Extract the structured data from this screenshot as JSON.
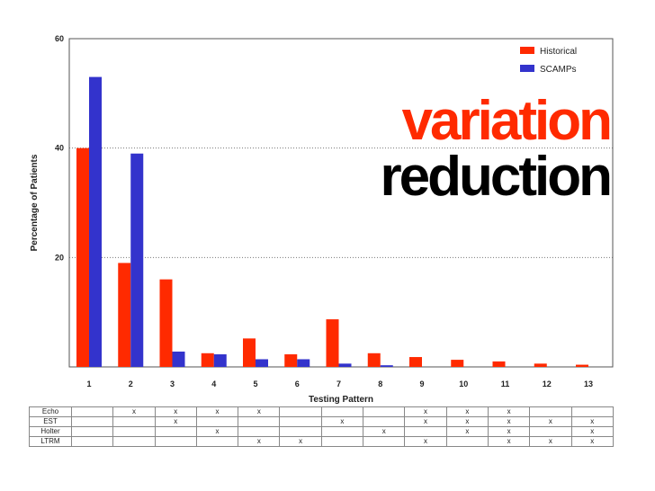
{
  "chart_data": {
    "type": "bar",
    "categories": [
      "1",
      "2",
      "3",
      "4",
      "5",
      "6",
      "7",
      "8",
      "9",
      "10",
      "11",
      "12",
      "13"
    ],
    "series": [
      {
        "name": "Historical",
        "color": "#ff2a00",
        "values": [
          40,
          19,
          16,
          2.5,
          5.2,
          2.3,
          8.7,
          2.5,
          1.8,
          1.3,
          1.0,
          0.6,
          0.4
        ]
      },
      {
        "name": "SCAMPs",
        "color": "#3333cc",
        "values": [
          53,
          39,
          2.8,
          2.3,
          1.4,
          1.4,
          0.6,
          0.3,
          0,
          0,
          0,
          0,
          0
        ]
      }
    ],
    "ylim": [
      0,
      60
    ],
    "yticks": [
      20,
      40,
      60
    ],
    "xlabel": "Testing Pattern",
    "ylabel": "Percentage of Patients",
    "grid": "horizontal",
    "legend_position": "top-right"
  },
  "overlay": {
    "line1": "variation",
    "line2": "reduction",
    "line1_color": "#ff2a00",
    "line2_color": "#000000"
  },
  "table": {
    "rows": [
      {
        "label": "Echo",
        "marks": [
          "",
          "x",
          "x",
          "x",
          "x",
          "",
          "",
          "",
          "x",
          "x",
          "x",
          "",
          ""
        ]
      },
      {
        "label": "EST",
        "marks": [
          "",
          "",
          "x",
          "",
          "",
          "",
          "x",
          "",
          "x",
          "x",
          "x",
          "x",
          "x"
        ]
      },
      {
        "label": "Holter",
        "marks": [
          "",
          "",
          "",
          "x",
          "",
          "",
          "",
          "x",
          "",
          "x",
          "x",
          "",
          "x"
        ]
      },
      {
        "label": "LTRM",
        "marks": [
          "",
          "",
          "",
          "",
          "x",
          "x",
          "",
          "",
          "x",
          "",
          "x",
          "x",
          "x"
        ]
      }
    ]
  }
}
